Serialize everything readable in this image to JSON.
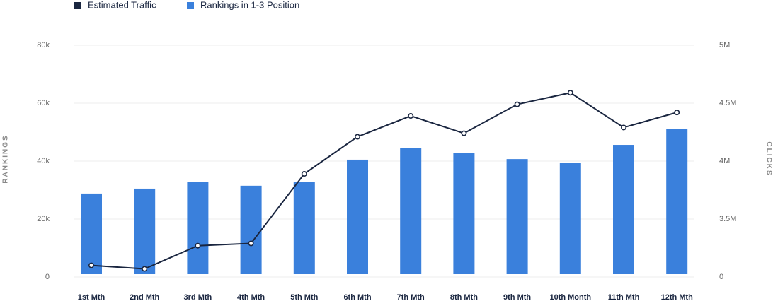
{
  "chart_data": {
    "type": "bar_line",
    "categories": [
      "1st Mth",
      "2nd Mth",
      "3rd Mth",
      "4th Mth",
      "5th Mth",
      "6th Mth",
      "7th Mth",
      "8th Mth",
      "9th Mth",
      "10th Month",
      "11th Mth",
      "12th Mth"
    ],
    "y_label": "RANKINGS",
    "y2_label": "CLICKS",
    "series": [
      {
        "name": "Estimated Traffic",
        "type": "line",
        "axis": "y2",
        "color": "#1a2640",
        "values": [
          3100000,
          3070000,
          3270000,
          3290000,
          3890000,
          4210000,
          4390000,
          4240000,
          4490000,
          4590000,
          4290000,
          4420000
        ]
      },
      {
        "name": "Rankings in 1-3 Position",
        "type": "bar",
        "axis": "y",
        "color": "#3a80dc",
        "values": [
          28800,
          30500,
          32900,
          31500,
          32700,
          40500,
          44400,
          42700,
          40700,
          39500,
          45600,
          51200
        ]
      }
    ],
    "ylim": [
      0,
      80000
    ],
    "yticks": [
      0,
      {
        "value": 20000,
        "label": "20k"
      },
      {
        "value": 40000,
        "label": "40k"
      },
      {
        "value": 60000,
        "label": "60k"
      },
      {
        "value": 80000,
        "label": "80k"
      }
    ],
    "y2lim": [
      3000000,
      5000000
    ],
    "y2ticks": [
      0,
      {
        "value": 3500000,
        "label": "3.5M"
      },
      {
        "value": 4000000,
        "label": "4M"
      },
      {
        "value": 4500000,
        "label": "4.5M"
      },
      {
        "value": 5000000,
        "label": "5M"
      }
    ],
    "grid": true
  }
}
